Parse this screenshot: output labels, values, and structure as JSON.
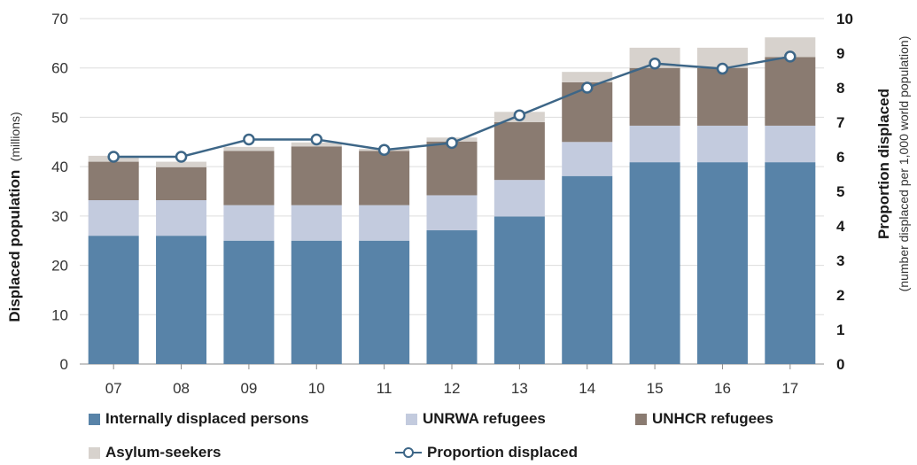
{
  "chart_data": {
    "type": "bar",
    "stacked": true,
    "categories": [
      "07",
      "08",
      "09",
      "10",
      "11",
      "12",
      "13",
      "14",
      "15",
      "16",
      "17"
    ],
    "series": [
      {
        "name": "Internally displaced persons",
        "color": "#5883a8",
        "values": [
          26,
          26,
          25,
          25,
          25,
          27.1,
          29.9,
          38.1,
          40.9,
          40.9,
          40.9
        ]
      },
      {
        "name": "UNRWA refugees",
        "color": "#c3cbde",
        "values": [
          7.2,
          7.2,
          7.2,
          7.2,
          7.2,
          7.1,
          7.4,
          6.9,
          7.4,
          7.4,
          7.4
        ]
      },
      {
        "name": "UNHCR refugees",
        "color": "#8a7b71",
        "values": [
          7.8,
          6.7,
          11,
          11.9,
          11,
          10.9,
          11.7,
          12.1,
          11.7,
          11.7,
          13.9
        ]
      },
      {
        "name": "Asylum-seekers",
        "color": "#d7d2cd",
        "values": [
          1.2,
          1.1,
          0.8,
          0.8,
          0.4,
          0.8,
          2.1,
          2.1,
          4.1,
          4.1,
          4
        ]
      }
    ],
    "line_series": {
      "name": "Proportion displaced",
      "axis": "right",
      "color": "#3d6687",
      "values": [
        6,
        6,
        6.5,
        6.5,
        6.2,
        6.4,
        7.2,
        8,
        8.7,
        8.55,
        8.9
      ]
    },
    "ylabel": "Displaced population",
    "ylabel_unit": "(millions)",
    "ylim": [
      0,
      70
    ],
    "yticks": [
      "0",
      "10",
      "20",
      "30",
      "40",
      "50",
      "60",
      "70"
    ],
    "y2label": "Proportion displaced",
    "y2label_sub": "(number displaced per 1,000 world population)",
    "y2lim": [
      0,
      10
    ],
    "y2ticks": [
      "0",
      "1",
      "2",
      "3",
      "4",
      "5",
      "6",
      "7",
      "8",
      "9",
      "10"
    ],
    "grid": true,
    "legend_position": "bottom"
  },
  "legend": {
    "idp": "Internally displaced persons",
    "unrwa": "UNRWA refugees",
    "unhcr": "UNHCR refugees",
    "asylum": "Asylum-seekers",
    "proportion": "Proportion displaced"
  }
}
